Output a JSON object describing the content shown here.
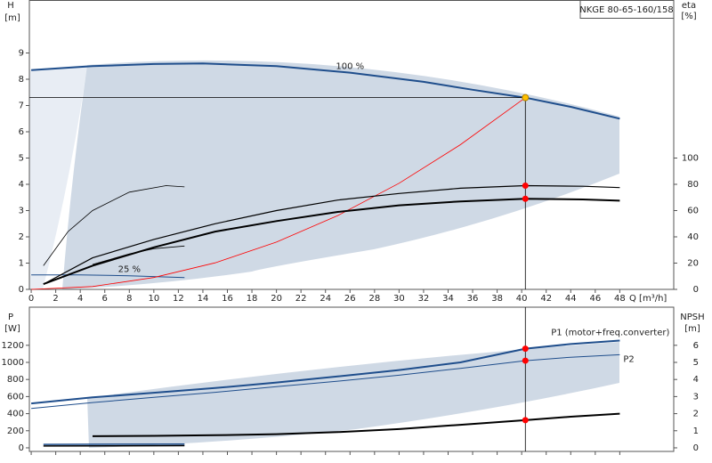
{
  "chart_data": [
    {
      "type": "line",
      "title": "NKGE 80-65-160/158",
      "y_label": "H",
      "y_unit": "[m]",
      "y2_label": "eta",
      "y2_unit": "[%]",
      "x_label": "Q [m³/h]",
      "xlim": [
        -0.15,
        52.4
      ],
      "ylim": [
        0,
        11
      ],
      "y2lim": [
        0,
        220
      ],
      "xticks": [
        0,
        2,
        4,
        6,
        8,
        10,
        12,
        14,
        16,
        18,
        20,
        22,
        24,
        26,
        28,
        30,
        32,
        34,
        36,
        38,
        40,
        42,
        44,
        46,
        48
      ],
      "yticks": [
        0,
        1,
        2,
        3,
        4,
        5,
        6,
        7,
        8,
        9
      ],
      "y2ticks": [
        0,
        20,
        40,
        60,
        80,
        100
      ],
      "series": [
        {
          "name": "100 %",
          "color": "#1f4e8c",
          "width": 2,
          "x": [
            0,
            5,
            10,
            14,
            20,
            26,
            32,
            36,
            40.3,
            44,
            48
          ],
          "values": [
            8.35,
            8.5,
            8.58,
            8.6,
            8.5,
            8.25,
            7.9,
            7.6,
            7.3,
            6.95,
            6.5
          ]
        },
        {
          "name": "25 %",
          "color": "#1f4e8c",
          "width": 1,
          "x": [
            0,
            4,
            8,
            12.5
          ],
          "values": [
            0.55,
            0.55,
            0.52,
            0.45
          ]
        },
        {
          "color": "#ff0000",
          "width": 0.8,
          "x": [
            0,
            5,
            10,
            15,
            20,
            25,
            30,
            35,
            40.3
          ],
          "values": [
            0,
            0.11,
            0.45,
            1.01,
            1.8,
            2.81,
            4.04,
            5.51,
            7.3
          ]
        },
        {
          "color": "#000000",
          "width": 1.2,
          "axis": "y2",
          "x": [
            1,
            5,
            10,
            15,
            20,
            25,
            30,
            35,
            40.3,
            45,
            48
          ],
          "values": [
            4,
            24,
            38,
            50,
            60,
            68,
            73,
            77,
            79,
            78.5,
            77.5
          ]
        },
        {
          "color": "#000000",
          "width": 2,
          "axis": "y2",
          "x": [
            1,
            5,
            10,
            15,
            20,
            25,
            30,
            35,
            40.3,
            45,
            48
          ],
          "values": [
            4,
            18,
            32,
            44,
            52,
            59,
            64,
            67,
            69,
            68.5,
            67.5
          ]
        },
        {
          "color": "#000000",
          "width": 0.8,
          "axis": "y2",
          "x": [
            1,
            3,
            5,
            8,
            11,
            12.5
          ],
          "values": [
            18,
            44,
            60,
            74,
            79,
            78
          ]
        },
        {
          "color": "#000000",
          "width": 0.8,
          "axis": "y2",
          "x": [
            5,
            8,
            10,
            12.5
          ],
          "values": [
            19,
            27,
            31,
            33
          ]
        }
      ],
      "markers": [
        {
          "x": 40.3,
          "y": 7.3,
          "color": "#ffc000"
        },
        {
          "x": 40.3,
          "y": 79,
          "axis": "y2",
          "color": "#ff0000"
        },
        {
          "x": 40.3,
          "y": 69,
          "axis": "y2",
          "color": "#ff0000"
        }
      ]
    },
    {
      "type": "line",
      "y_label": "P",
      "y_unit": "[W]",
      "y2_label": "NPSH",
      "y2_unit": "[m]",
      "xlim": [
        -0.15,
        52.4
      ],
      "ylim": [
        -42,
        1646
      ],
      "y2lim": [
        -0.21,
        8.23
      ],
      "yticks": [
        0,
        200,
        400,
        600,
        800,
        1000,
        1200
      ],
      "y2ticks": [
        0,
        1,
        2,
        3,
        4,
        5,
        6
      ],
      "series": [
        {
          "name": "P1 (motor+freq.converter)",
          "color": "#1f4e8c",
          "width": 2,
          "x": [
            0,
            5,
            10,
            15,
            20,
            25,
            30,
            35,
            40.3,
            44,
            48
          ],
          "values": [
            520,
            590,
            645,
            700,
            765,
            835,
            910,
            1000,
            1160,
            1215,
            1255
          ]
        },
        {
          "name": "P2",
          "color": "#1f4e8c",
          "width": 1,
          "x": [
            0,
            5,
            10,
            15,
            20,
            25,
            30,
            35,
            40.3,
            44,
            48
          ],
          "values": [
            460,
            530,
            590,
            650,
            715,
            780,
            850,
            930,
            1020,
            1060,
            1090
          ]
        },
        {
          "color": "#000000",
          "width": 2,
          "axis": "y2",
          "x": [
            5,
            10,
            15,
            20,
            25,
            30,
            35,
            40.3,
            44,
            48
          ],
          "values": [
            0.68,
            0.7,
            0.74,
            0.8,
            0.92,
            1.1,
            1.35,
            1.62,
            1.82,
            2.0
          ]
        },
        {
          "color": "#1f4e8c",
          "width": 1.5,
          "x": [
            1,
            12.5
          ],
          "values": [
            40,
            45
          ]
        },
        {
          "color": "#000000",
          "width": 1.5,
          "x": [
            1,
            12.5
          ],
          "values": [
            22,
            26
          ]
        }
      ],
      "markers": [
        {
          "x": 40.3,
          "y": 1160,
          "color": "#ff0000"
        },
        {
          "x": 40.3,
          "y": 1020,
          "color": "#ff0000"
        },
        {
          "x": 40.3,
          "y": 1.62,
          "axis": "y2",
          "color": "#ff0000"
        }
      ]
    }
  ]
}
